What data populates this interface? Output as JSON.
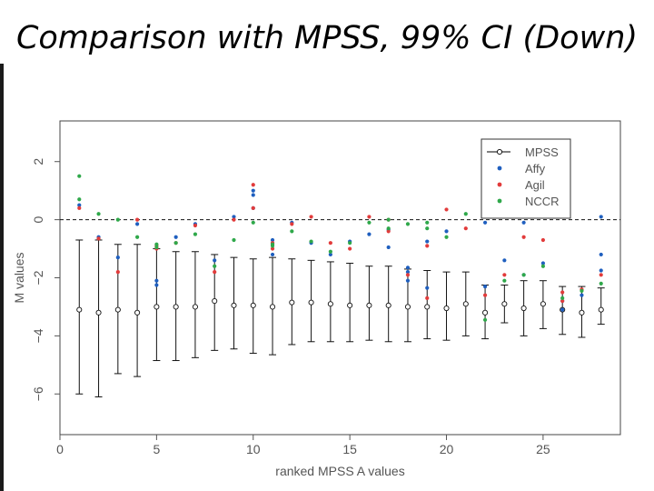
{
  "slide": {
    "title": "Comparison with MPSS, 99% CI  (Down)"
  },
  "chart_data": {
    "type": "scatter",
    "xlabel": "ranked MPSS A values",
    "ylabel": "M values",
    "xlim": [
      0,
      29
    ],
    "ylim": [
      -7.4,
      3.4
    ],
    "xticks": [
      0,
      5,
      10,
      15,
      20,
      25
    ],
    "yticks": [
      -6,
      -4,
      -2,
      0,
      2
    ],
    "reference_line": {
      "y": 0,
      "style": "dashed"
    },
    "legend": {
      "placement": "top-right",
      "entries": [
        {
          "name": "MPSS",
          "symbol": "open-circle-with-bar",
          "color": "#000000"
        },
        {
          "name": "Affy",
          "symbol": "dot",
          "color": "#1f5fbf"
        },
        {
          "name": "Agil",
          "symbol": "dot",
          "color": "#e23b3b"
        },
        {
          "name": "NCCR",
          "symbol": "dot",
          "color": "#2fa84a"
        }
      ]
    },
    "mpss": {
      "x": [
        1,
        2,
        3,
        4,
        5,
        6,
        7,
        8,
        9,
        10,
        11,
        12,
        13,
        14,
        15,
        16,
        17,
        18,
        19,
        20,
        21,
        22,
        23,
        24,
        25,
        26,
        27,
        28
      ],
      "m": [
        -3.1,
        -3.2,
        -3.1,
        -3.2,
        -3.0,
        -3.0,
        -3.0,
        -2.8,
        -2.95,
        -2.95,
        -3.0,
        -2.85,
        -2.85,
        -2.9,
        -2.95,
        -2.95,
        -2.95,
        -3.0,
        -3.0,
        -3.05,
        -2.9,
        -3.2,
        -2.9,
        -3.05,
        -2.9,
        -3.1,
        -3.2,
        -3.1
      ],
      "ci_low": [
        -6.0,
        -6.1,
        -5.3,
        -5.4,
        -4.85,
        -4.85,
        -4.75,
        -4.5,
        -4.45,
        -4.6,
        -4.65,
        -4.3,
        -4.2,
        -4.2,
        -4.2,
        -4.15,
        -4.2,
        -4.2,
        -4.1,
        -4.15,
        -4.0,
        -4.1,
        -3.55,
        -4.0,
        -3.75,
        -3.95,
        -4.05,
        -3.6
      ],
      "ci_high": [
        -0.7,
        -0.7,
        -0.85,
        -0.85,
        -1.0,
        -1.1,
        -1.1,
        -1.2,
        -1.3,
        -1.35,
        -1.3,
        -1.35,
        -1.4,
        -1.45,
        -1.5,
        -1.6,
        -1.6,
        -1.7,
        -1.75,
        -1.8,
        -1.8,
        -2.25,
        -2.25,
        -2.1,
        -2.1,
        -2.3,
        -2.3,
        -2.35
      ]
    },
    "series": [
      {
        "name": "Affy",
        "color": "#1f5fbf",
        "points": [
          [
            1,
            0.5
          ],
          [
            2,
            -0.6
          ],
          [
            3,
            -1.3
          ],
          [
            4,
            -0.15
          ],
          [
            5,
            -2.1
          ],
          [
            5,
            -2.25
          ],
          [
            6,
            -0.6
          ],
          [
            7,
            -0.15
          ],
          [
            8,
            -1.4
          ],
          [
            9,
            0.1
          ],
          [
            10,
            1.0
          ],
          [
            10,
            0.4
          ],
          [
            10,
            0.85
          ],
          [
            11,
            -0.7
          ],
          [
            11,
            -1.2
          ],
          [
            12,
            -0.1
          ],
          [
            13,
            -0.8
          ],
          [
            14,
            -1.2
          ],
          [
            15,
            -0.75
          ],
          [
            16,
            -0.5
          ],
          [
            17,
            -0.35
          ],
          [
            17,
            -0.95
          ],
          [
            18,
            -1.65
          ],
          [
            18,
            -2.1
          ],
          [
            18,
            -1.8
          ],
          [
            19,
            -2.35
          ],
          [
            19,
            -0.75
          ],
          [
            20,
            -0.4
          ],
          [
            22,
            -2.3
          ],
          [
            22,
            -0.1
          ],
          [
            23,
            -1.4
          ],
          [
            24,
            -0.1
          ],
          [
            24,
            -1.9
          ],
          [
            25,
            -1.5
          ],
          [
            26,
            -3.1
          ],
          [
            26,
            -2.8
          ],
          [
            27,
            -2.6
          ],
          [
            28,
            -1.75
          ],
          [
            28,
            0.1
          ],
          [
            28,
            -1.2
          ]
        ]
      },
      {
        "name": "Agil",
        "color": "#e23b3b",
        "points": [
          [
            1,
            0.4
          ],
          [
            2,
            -0.65
          ],
          [
            3,
            -1.8
          ],
          [
            4,
            0.0
          ],
          [
            5,
            -0.9
          ],
          [
            5,
            -1.0
          ],
          [
            6,
            -0.8
          ],
          [
            7,
            -0.2
          ],
          [
            8,
            -1.8
          ],
          [
            9,
            0.0
          ],
          [
            10,
            1.2
          ],
          [
            10,
            0.4
          ],
          [
            11,
            -0.8
          ],
          [
            11,
            -1.0
          ],
          [
            12,
            -0.15
          ],
          [
            13,
            0.1
          ],
          [
            14,
            -0.8
          ],
          [
            15,
            -1.0
          ],
          [
            16,
            0.1
          ],
          [
            17,
            0.0
          ],
          [
            17,
            -0.4
          ],
          [
            18,
            -1.9
          ],
          [
            19,
            -2.7
          ],
          [
            19,
            -0.9
          ],
          [
            20,
            0.35
          ],
          [
            21,
            -0.3
          ],
          [
            22,
            -2.6
          ],
          [
            23,
            -1.9
          ],
          [
            24,
            -0.6
          ],
          [
            25,
            -0.7
          ],
          [
            26,
            -2.8
          ],
          [
            26,
            -2.5
          ],
          [
            27,
            -2.4
          ],
          [
            28,
            -1.9
          ]
        ]
      },
      {
        "name": "NCCR",
        "color": "#2fa84a",
        "points": [
          [
            1,
            1.5
          ],
          [
            1,
            0.7
          ],
          [
            2,
            0.2
          ],
          [
            3,
            0.0
          ],
          [
            4,
            -0.6
          ],
          [
            5,
            -0.85
          ],
          [
            5,
            -0.95
          ],
          [
            6,
            -0.8
          ],
          [
            7,
            -0.5
          ],
          [
            8,
            -1.6
          ],
          [
            9,
            -0.7
          ],
          [
            10,
            -0.1
          ],
          [
            11,
            -0.85
          ],
          [
            11,
            -0.9
          ],
          [
            12,
            -0.4
          ],
          [
            13,
            -0.75
          ],
          [
            14,
            -1.1
          ],
          [
            15,
            -0.8
          ],
          [
            16,
            -0.1
          ],
          [
            17,
            0.0
          ],
          [
            17,
            -0.3
          ],
          [
            18,
            -0.15
          ],
          [
            19,
            -0.1
          ],
          [
            19,
            -0.3
          ],
          [
            20,
            -0.6
          ],
          [
            21,
            0.2
          ],
          [
            22,
            -3.45
          ],
          [
            23,
            -2.1
          ],
          [
            24,
            -1.9
          ],
          [
            25,
            -1.6
          ],
          [
            26,
            -2.7
          ],
          [
            27,
            -2.45
          ],
          [
            28,
            -2.2
          ]
        ]
      }
    ]
  }
}
